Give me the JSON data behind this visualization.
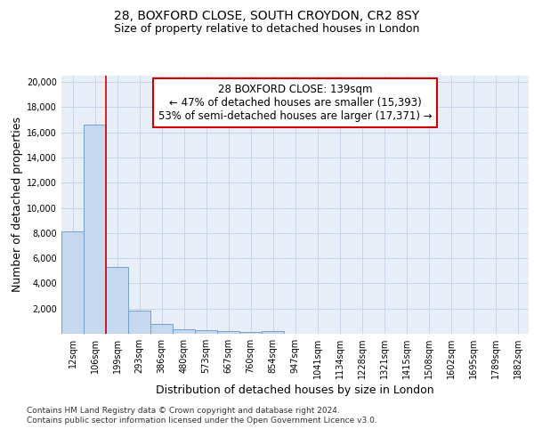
{
  "title_line1": "28, BOXFORD CLOSE, SOUTH CROYDON, CR2 8SY",
  "title_line2": "Size of property relative to detached houses in London",
  "xlabel": "Distribution of detached houses by size in London",
  "ylabel": "Number of detached properties",
  "categories": [
    "12sqm",
    "106sqm",
    "199sqm",
    "293sqm",
    "386sqm",
    "480sqm",
    "573sqm",
    "667sqm",
    "760sqm",
    "854sqm",
    "947sqm",
    "1041sqm",
    "1134sqm",
    "1228sqm",
    "1321sqm",
    "1415sqm",
    "1508sqm",
    "1602sqm",
    "1695sqm",
    "1789sqm",
    "1882sqm"
  ],
  "values": [
    8100,
    16600,
    5300,
    1850,
    800,
    380,
    270,
    210,
    170,
    200,
    0,
    0,
    0,
    0,
    0,
    0,
    0,
    0,
    0,
    0,
    0
  ],
  "bar_color": "#c5d8ef",
  "bar_edge_color": "#6699cc",
  "vline_x": 1.5,
  "vline_color": "#cc0000",
  "annotation_text": "28 BOXFORD CLOSE: 139sqm\n← 47% of detached houses are smaller (15,393)\n53% of semi-detached houses are larger (17,371) →",
  "annotation_box_color": "#ffffff",
  "annotation_box_edge_color": "#cc0000",
  "ylim": [
    0,
    20500
  ],
  "yticks": [
    0,
    2000,
    4000,
    6000,
    8000,
    10000,
    12000,
    14000,
    16000,
    18000,
    20000
  ],
  "grid_color": "#c8d4e8",
  "background_color": "#e8eef8",
  "footnote": "Contains HM Land Registry data © Crown copyright and database right 2024.\nContains public sector information licensed under the Open Government Licence v3.0.",
  "title_fontsize": 10,
  "subtitle_fontsize": 9,
  "axis_label_fontsize": 9,
  "tick_fontsize": 7,
  "annotation_fontsize": 8.5
}
